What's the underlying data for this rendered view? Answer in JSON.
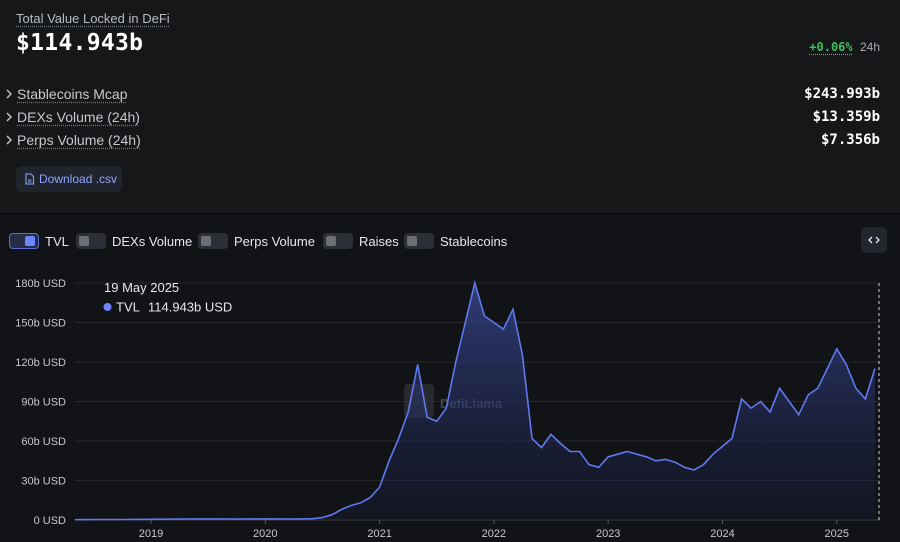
{
  "header": {
    "tvl_label": "Total Value Locked in DeFi",
    "tvl_value": "$114.943b",
    "change_pct": "+0.06%",
    "change_period": "24h"
  },
  "metrics": [
    {
      "label": "Stablecoins Mcap",
      "value": "$243.993b"
    },
    {
      "label": "DEXs Volume (24h)",
      "value": "$13.359b"
    },
    {
      "label": "Perps Volume (24h)",
      "value": "$7.356b"
    }
  ],
  "download_label": "Download .csv",
  "toggles": [
    {
      "label": "TVL",
      "on": true
    },
    {
      "label": "DEXs Volume",
      "on": false
    },
    {
      "label": "Perps Volume",
      "on": false
    },
    {
      "label": "Raises",
      "on": false
    },
    {
      "label": "Stablecoins",
      "on": false
    }
  ],
  "tooltip": {
    "date": "19 May 2025",
    "series": "TVL",
    "value": "114.943b USD"
  },
  "watermark": "DefiLlama",
  "colors": {
    "accent": "#6f85ff",
    "line": "#5f79f0",
    "positive": "#3fbe5f",
    "background": "#121316"
  },
  "icons": {
    "chevron": "chevron-right-icon",
    "download": "file-icon",
    "embed": "code-icon"
  },
  "chart_data": {
    "type": "area",
    "series": [
      {
        "name": "TVL",
        "x": [
          "2018-05",
          "2018-07",
          "2018-10",
          "2019-01",
          "2019-04",
          "2019-07",
          "2019-10",
          "2020-01",
          "2020-04",
          "2020-06",
          "2020-07",
          "2020-08",
          "2020-09",
          "2020-10",
          "2020-11",
          "2020-12",
          "2021-01",
          "2021-02",
          "2021-03",
          "2021-04",
          "2021-05",
          "2021-06",
          "2021-07",
          "2021-08",
          "2021-09",
          "2021-10",
          "2021-11",
          "2021-12",
          "2022-01",
          "2022-02",
          "2022-03",
          "2022-04",
          "2022-05",
          "2022-06",
          "2022-07",
          "2022-08",
          "2022-09",
          "2022-10",
          "2022-11",
          "2022-12",
          "2023-01",
          "2023-02",
          "2023-03",
          "2023-04",
          "2023-05",
          "2023-06",
          "2023-07",
          "2023-08",
          "2023-09",
          "2023-10",
          "2023-11",
          "2023-12",
          "2024-01",
          "2024-02",
          "2024-03",
          "2024-04",
          "2024-05",
          "2024-06",
          "2024-07",
          "2024-08",
          "2024-09",
          "2024-10",
          "2024-11",
          "2024-12",
          "2025-01",
          "2025-02",
          "2025-03",
          "2025-04",
          "2025-05"
        ],
        "y": [
          0.2,
          0.3,
          0.4,
          0.5,
          0.7,
          0.8,
          0.7,
          0.8,
          0.7,
          1.0,
          1.8,
          4,
          8,
          11,
          13,
          17,
          25,
          45,
          62,
          82,
          118,
          78,
          75,
          85,
          120,
          150,
          180,
          155,
          150,
          145,
          160,
          125,
          62,
          55,
          65,
          58,
          52,
          52,
          42,
          40,
          48,
          50,
          52,
          50,
          48,
          45,
          46,
          44,
          40,
          38,
          42,
          50,
          56,
          62,
          92,
          85,
          90,
          82,
          100,
          90,
          80,
          95,
          100,
          115,
          130,
          118,
          100,
          92,
          115
        ]
      }
    ],
    "xlabel": "",
    "ylabel": "",
    "ylim": [
      0,
      180
    ],
    "y_ticks": [
      "0 USD",
      "30b USD",
      "60b USD",
      "90b USD",
      "120b USD",
      "150b USD",
      "180b USD"
    ],
    "x_ticks": [
      "2019",
      "2020",
      "2021",
      "2022",
      "2023",
      "2024",
      "2025"
    ],
    "grid": true,
    "legend": "none"
  }
}
